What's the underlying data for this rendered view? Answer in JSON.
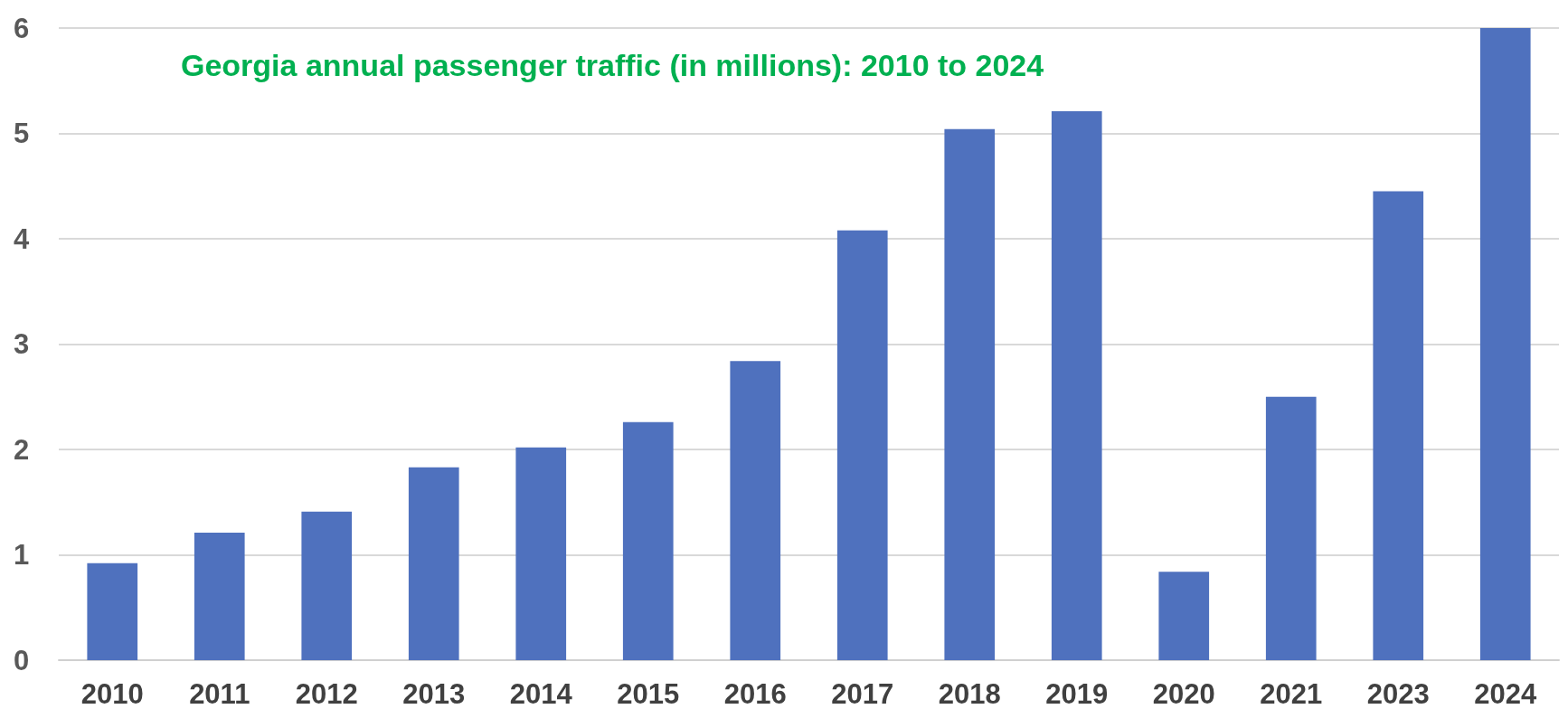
{
  "chart_data": {
    "type": "bar",
    "title": "Georgia annual passenger traffic (in millions): 2010 to 2024",
    "categories": [
      "2010",
      "2011",
      "2012",
      "2013",
      "2014",
      "2015",
      "2016",
      "2017",
      "2018",
      "2019",
      "2020",
      "2021",
      "2023",
      "2024"
    ],
    "values": [
      0.92,
      1.21,
      1.41,
      1.83,
      2.02,
      2.26,
      2.84,
      4.08,
      5.04,
      5.21,
      0.84,
      2.5,
      4.45,
      6.0
    ],
    "color": "#4f71be",
    "ylim": [
      0,
      6
    ],
    "yticks": [
      0,
      1,
      2,
      3,
      4,
      5,
      6
    ],
    "grid": true
  }
}
